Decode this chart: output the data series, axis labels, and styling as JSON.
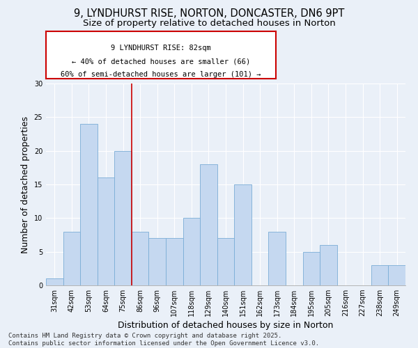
{
  "title_line1": "9, LYNDHURST RISE, NORTON, DONCASTER, DN6 9PT",
  "title_line2": "Size of property relative to detached houses in Norton",
  "xlabel": "Distribution of detached houses by size in Norton",
  "ylabel": "Number of detached properties",
  "categories": [
    "31sqm",
    "42sqm",
    "53sqm",
    "64sqm",
    "75sqm",
    "86sqm",
    "96sqm",
    "107sqm",
    "118sqm",
    "129sqm",
    "140sqm",
    "151sqm",
    "162sqm",
    "173sqm",
    "184sqm",
    "195sqm",
    "205sqm",
    "216sqm",
    "227sqm",
    "238sqm",
    "249sqm"
  ],
  "values": [
    1,
    8,
    24,
    16,
    20,
    8,
    7,
    7,
    10,
    18,
    7,
    15,
    0,
    8,
    0,
    5,
    6,
    0,
    0,
    3,
    3
  ],
  "bar_color": "#c5d8f0",
  "bar_edge_color": "#7aadd6",
  "vline_index": 5,
  "annotation_text": "9 LYNDHURST RISE: 82sqm\n← 40% of detached houses are smaller (66)\n60% of semi-detached houses are larger (101) →",
  "annotation_box_color": "#ffffff",
  "annotation_box_edge": "#cc0000",
  "vline_color": "#cc0000",
  "ylim": [
    0,
    30
  ],
  "yticks": [
    0,
    5,
    10,
    15,
    20,
    25,
    30
  ],
  "bg_color": "#eaf0f8",
  "plot_bg_color": "#eaf0f8",
  "grid_color": "#ffffff",
  "footer_line1": "Contains HM Land Registry data © Crown copyright and database right 2025.",
  "footer_line2": "Contains public sector information licensed under the Open Government Licence v3.0.",
  "title_fontsize": 10.5,
  "subtitle_fontsize": 9.5,
  "axis_label_fontsize": 9,
  "tick_fontsize": 7,
  "annotation_fontsize": 7.5,
  "footer_fontsize": 6.5
}
